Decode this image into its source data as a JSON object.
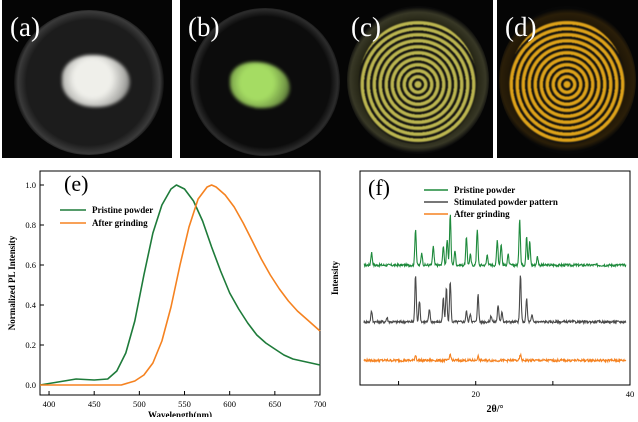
{
  "photos": [
    {
      "label": "(a)",
      "powder_color": "#efefea"
    },
    {
      "label": "(b)",
      "powder_color": "#a5dc63"
    },
    {
      "label": "(c)",
      "powder_color": "#d6cf5a"
    },
    {
      "label": "(d)",
      "powder_color": "#f3b21c"
    }
  ],
  "chart_data": [
    {
      "type": "line",
      "panel_label": "(e)",
      "xlabel": "Wavelength(nm)",
      "ylabel": "Normalized PL Intensity",
      "xlim": [
        390,
        700
      ],
      "ylim": [
        -0.05,
        1.07
      ],
      "xticks": [
        400,
        450,
        500,
        550,
        600,
        650,
        700
      ],
      "yticks": [
        0.0,
        0.2,
        0.4,
        0.6,
        0.8,
        1.0
      ],
      "xtick_labels": [
        "400",
        "450",
        "500",
        "550",
        "600",
        "650",
        "700"
      ],
      "ytick_labels": [
        "0.0",
        "0.2",
        "0.4",
        "0.6",
        "0.8",
        "1.0"
      ],
      "legend_position": "upper-left",
      "series": [
        {
          "name": "Pristine powder",
          "color": "#1e7b3a",
          "x": [
            390,
            410,
            430,
            450,
            465,
            475,
            485,
            495,
            505,
            515,
            525,
            535,
            541,
            550,
            560,
            570,
            580,
            590,
            600,
            610,
            620,
            630,
            640,
            650,
            660,
            670,
            680,
            690,
            700
          ],
          "y": [
            0.0,
            0.015,
            0.03,
            0.025,
            0.03,
            0.07,
            0.16,
            0.32,
            0.55,
            0.76,
            0.9,
            0.98,
            1.0,
            0.98,
            0.92,
            0.82,
            0.69,
            0.57,
            0.46,
            0.38,
            0.31,
            0.25,
            0.21,
            0.18,
            0.15,
            0.13,
            0.12,
            0.11,
            0.1
          ]
        },
        {
          "name": "After grinding",
          "color": "#f58220",
          "x": [
            390,
            450,
            480,
            495,
            505,
            515,
            525,
            535,
            545,
            555,
            565,
            575,
            580,
            585,
            595,
            605,
            615,
            625,
            635,
            645,
            655,
            665,
            675,
            685,
            700
          ],
          "y": [
            0.0,
            0.0,
            0.0,
            0.02,
            0.05,
            0.11,
            0.22,
            0.39,
            0.6,
            0.79,
            0.93,
            0.99,
            1.0,
            0.99,
            0.95,
            0.89,
            0.81,
            0.72,
            0.63,
            0.55,
            0.48,
            0.42,
            0.37,
            0.33,
            0.27
          ]
        }
      ]
    },
    {
      "type": "line",
      "panel_label": "(f)",
      "xlabel": "2θ/°",
      "ylabel": "Intensity",
      "xlim": [
        5,
        40
      ],
      "ylim": [
        0,
        10
      ],
      "xticks": [
        10,
        20,
        30,
        40
      ],
      "xtick_labels": [
        "",
        "20",
        "",
        "40"
      ],
      "legend_position": "upper-left",
      "series": [
        {
          "name": "Pristine powder",
          "color": "#1e8a3c",
          "baseline": 5.6,
          "peaks": [
            [
              6.5,
              0.6
            ],
            [
              12.2,
              1.7
            ],
            [
              13.0,
              0.6
            ],
            [
              14.5,
              0.9
            ],
            [
              15.8,
              0.9
            ],
            [
              16.3,
              1.2
            ],
            [
              16.7,
              2.4
            ],
            [
              17.3,
              0.7
            ],
            [
              18.8,
              1.3
            ],
            [
              19.3,
              0.5
            ],
            [
              20.2,
              1.7
            ],
            [
              21.5,
              0.5
            ],
            [
              22.8,
              1.2
            ],
            [
              23.3,
              1.0
            ],
            [
              24.2,
              0.5
            ],
            [
              25.7,
              2.2
            ],
            [
              26.6,
              1.4
            ],
            [
              27.0,
              1.1
            ],
            [
              28.0,
              0.4
            ]
          ]
        },
        {
          "name": "Stimulated powder pattern",
          "color": "#4a4a4a",
          "baseline": 2.95,
          "peaks": [
            [
              6.5,
              0.5
            ],
            [
              8.5,
              0.2
            ],
            [
              12.2,
              2.2
            ],
            [
              12.7,
              1.0
            ],
            [
              14.0,
              0.6
            ],
            [
              15.8,
              1.1
            ],
            [
              16.2,
              1.6
            ],
            [
              16.7,
              1.9
            ],
            [
              18.8,
              0.5
            ],
            [
              19.3,
              0.4
            ],
            [
              20.3,
              1.3
            ],
            [
              22.0,
              0.3
            ],
            [
              22.9,
              0.8
            ],
            [
              23.4,
              0.5
            ],
            [
              25.8,
              2.2
            ],
            [
              26.6,
              1.1
            ],
            [
              27.3,
              0.3
            ]
          ]
        },
        {
          "name": "After grinding",
          "color": "#f58220",
          "baseline": 1.15,
          "peaks": [
            [
              12.2,
              0.25
            ],
            [
              16.7,
              0.3
            ],
            [
              20.3,
              0.2
            ],
            [
              25.8,
              0.25
            ]
          ]
        }
      ]
    }
  ]
}
